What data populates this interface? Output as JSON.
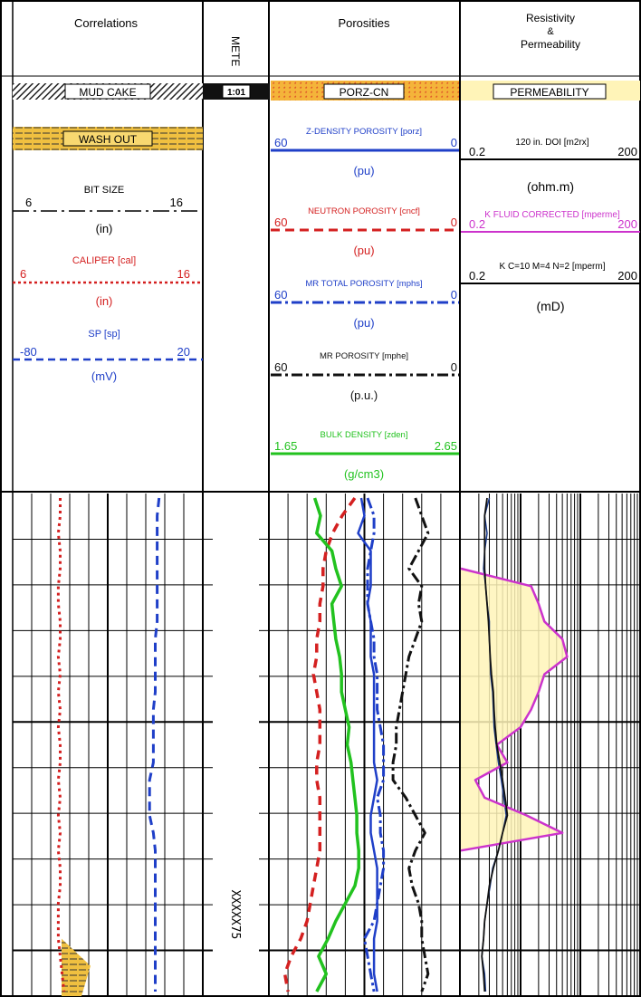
{
  "colors": {
    "caliper": "#d42020",
    "sp": "#1f3fc8",
    "density_porosity": "#1f3fc8",
    "neutron": "#d42020",
    "mr_total": "#1f3fc8",
    "mr_por": "#111111",
    "bulk_density": "#22c21f",
    "k_fluid": "#cc33cc",
    "k_ctm": "#111111",
    "resistivity": "#1a3a8a",
    "permeability_fill": "#fff4b8",
    "mud_cake": "#222222",
    "wash_out": "#f0c040",
    "porz_fill": "#f4b43a"
  },
  "header": {
    "correlations": {
      "title": "Correlations",
      "mud_cake": "MUD CAKE",
      "wash_out": "WASH OUT",
      "bit_size": {
        "name": "BIT SIZE",
        "min": "6",
        "max": "16",
        "unit": "(in)"
      },
      "caliper": {
        "name": "CALIPER [cal]",
        "min": "6",
        "max": "16",
        "unit": "(in)"
      },
      "sp": {
        "name": "SP [sp]",
        "min": "-80",
        "max": "20",
        "unit": "(mV)"
      }
    },
    "depth": {
      "title": "METE",
      "badge": "1:01"
    },
    "porosities": {
      "title": "Porosities",
      "porz": "PORZ-CN",
      "curves": [
        {
          "name": "Z-DENSITY POROSITY [porz]",
          "min": "60",
          "max": "0",
          "unit": "(pu)"
        },
        {
          "name": "NEUTRON POROSITY [cncf]",
          "min": "60",
          "max": "0",
          "unit": "(pu)"
        },
        {
          "name": "MR TOTAL POROSITY [mphs]",
          "min": "60",
          "max": "0",
          "unit": "(pu)"
        },
        {
          "name": "MR POROSITY [mphe]",
          "min": "60",
          "max": "0",
          "unit": "(p.u.)"
        },
        {
          "name": "BULK DENSITY [zden]",
          "min": "1.65",
          "max": "2.65",
          "unit": "(g/cm3)"
        }
      ]
    },
    "resistivity": {
      "title1": "Resistivity",
      "title2": "&",
      "title3": "Permeability",
      "perm": "PERMEABILITY",
      "curves": [
        {
          "name": "120 in. DOI [m2rx]",
          "min": "0.2",
          "max": "200",
          "unit": "(ohm.m)"
        },
        {
          "name": "K FLUID CORRECTED [mperme]",
          "min": "0.2",
          "max": "200",
          "unit": ""
        },
        {
          "name": "K C=10 M=4 N=2 [mperm]",
          "min": "0.2",
          "max": "200",
          "unit": "(mD)"
        }
      ]
    }
  },
  "depth_label": "XXXXX75",
  "chart_data": {
    "type": "line",
    "title": "",
    "x": [
      0,
      1,
      2,
      3,
      4,
      5,
      6,
      7,
      8,
      9,
      10,
      11,
      12,
      13,
      14,
      15,
      16,
      17,
      18,
      19,
      20,
      21,
      22,
      23,
      24,
      25,
      26,
      27,
      28
    ],
    "tracks": [
      {
        "name": "Correlations",
        "series": [
          {
            "name": "CALIPER [cal]",
            "scale": [
              6,
              16
            ],
            "values": [
              8.5,
              8.5,
              8.4,
              8.5,
              8.5,
              8.4,
              8.4,
              8.5,
              8.5,
              8.4,
              8.5,
              8.4,
              8.5,
              8.4,
              8.5,
              8.5,
              8.4,
              8.5,
              8.4,
              8.5,
              8.4,
              8.5,
              8.5,
              8.4,
              8.4,
              8.4,
              8.5,
              8.6,
              8.7
            ]
          },
          {
            "name": "SP [sp]",
            "scale": [
              -80,
              20
            ],
            "values": [
              -3,
              -4,
              -4,
              -4,
              -4,
              -4,
              -4,
              -4,
              -5,
              -5,
              -5,
              -5,
              -6,
              -6,
              -6,
              -6,
              -8,
              -8,
              -8,
              -6,
              -5,
              -5,
              -5,
              -5,
              -5,
              -5,
              -5,
              -5,
              -5
            ]
          }
        ]
      },
      {
        "name": "Porosities",
        "series": [
          {
            "name": "NEUTRON POROSITY [cncf]",
            "scale": [
              60,
              0
            ],
            "values": [
              33,
              37,
              40,
              42,
              43,
              43,
              44,
              44,
              45,
              45,
              46,
              45,
              44,
              44,
              44,
              45,
              45,
              44,
              44,
              44,
              44,
              45,
              46,
              47,
              48,
              50,
              53,
              55,
              54
            ]
          },
          {
            "name": "Z-DENSITY POROSITY [porz]",
            "scale": [
              60,
              0
            ],
            "values": [
              31,
              30,
              32,
              28,
              28,
              28,
              29,
              28,
              28,
              28,
              27,
              27,
              27,
              27,
              27,
              27,
              26,
              27,
              28,
              28,
              27,
              26,
              26,
              26,
              26,
              27,
              27,
              27,
              26
            ]
          },
          {
            "name": "MR TOTAL POROSITY [mphs]",
            "scale": [
              60,
              0
            ],
            "values": [
              29,
              27,
              27,
              28,
              29,
              29,
              29,
              28,
              27,
              27,
              26,
              26,
              26,
              25,
              24,
              24,
              24,
              26,
              25,
              25,
              24,
              24,
              25,
              26,
              27,
              30,
              29,
              28,
              27
            ]
          },
          {
            "name": "BULK DENSITY [zden]",
            "scale": [
              1.65,
              2.65
            ],
            "values": [
              1.89,
              1.92,
              1.9,
              1.98,
              2.0,
              2.03,
              1.98,
              1.99,
              2.0,
              2.02,
              2.03,
              2.03,
              2.05,
              2.07,
              2.06,
              2.08,
              2.09,
              2.1,
              2.11,
              2.11,
              2.12,
              2.12,
              2.1,
              2.05,
              2.0,
              1.96,
              1.91,
              1.95,
              1.9
            ]
          },
          {
            "name": "MR POROSITY [mphe]",
            "scale": [
              60,
              0
            ],
            "values": [
              14,
              12,
              10,
              13,
              16,
              12,
              13,
              12,
              14,
              16,
              17,
              18,
              19,
              20,
              20,
              21,
              21,
              17,
              14,
              11,
              14,
              16,
              15,
              13,
              12,
              12,
              11,
              10,
              12
            ]
          }
        ]
      },
      {
        "name": "Resistivity & Permeability",
        "series": [
          {
            "name": "120 in. DOI [m2rx]",
            "scale": [
              0.2,
              200
            ],
            "log": true,
            "values": [
              0.6,
              0.5,
              0.55,
              0.5,
              0.48,
              0.52,
              0.55,
              0.6,
              0.6,
              0.62,
              0.63,
              0.68,
              0.7,
              0.72,
              0.78,
              0.85,
              0.95,
              1.05,
              1.15,
              1.0,
              0.85,
              0.68,
              0.62,
              0.55,
              0.5,
              0.48,
              0.45,
              0.5,
              0.52
            ]
          },
          {
            "name": "K FLUID CORRECTED [mperme]",
            "scale": [
              0.2,
              200
            ],
            "log": true,
            "values": [
              null,
              null,
              null,
              null,
              0.2,
              3,
              4,
              5,
              10,
              12,
              5,
              4,
              3,
              2,
              0.8,
              1.2,
              0.35,
              0.5,
              2.5,
              10,
              0.2,
              null,
              null,
              null,
              null,
              null,
              null,
              null,
              null
            ]
          },
          {
            "name": "K C=10 M=4 N=2 [mperm]",
            "scale": [
              0.2,
              200
            ],
            "log": true,
            "values": [
              0.55,
              0.5,
              0.5,
              0.5,
              0.5,
              0.52,
              0.55,
              0.58,
              0.6,
              0.62,
              0.65,
              0.7,
              0.72,
              0.75,
              0.8,
              0.9,
              1.0,
              1.1,
              1.2,
              1.0,
              0.85,
              0.7,
              0.6,
              0.55,
              0.5,
              0.48,
              0.45,
              0.48,
              0.5
            ]
          }
        ]
      }
    ]
  }
}
